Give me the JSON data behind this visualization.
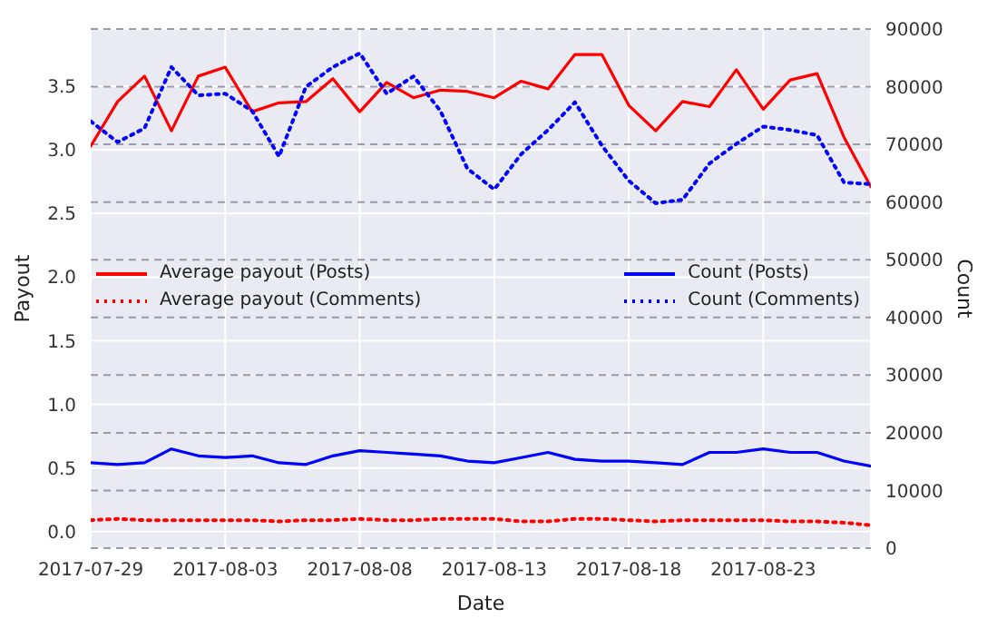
{
  "chart_data": {
    "type": "line",
    "xlabel": "Date",
    "ylabel": "Payout",
    "y2label": "Count",
    "x": [
      "2017-07-29",
      "2017-07-30",
      "2017-07-31",
      "2017-08-01",
      "2017-08-02",
      "2017-08-03",
      "2017-08-04",
      "2017-08-05",
      "2017-08-06",
      "2017-08-07",
      "2017-08-08",
      "2017-08-09",
      "2017-08-10",
      "2017-08-11",
      "2017-08-12",
      "2017-08-13",
      "2017-08-14",
      "2017-08-15",
      "2017-08-16",
      "2017-08-17",
      "2017-08-18",
      "2017-08-19",
      "2017-08-20",
      "2017-08-21",
      "2017-08-22",
      "2017-08-23",
      "2017-08-24",
      "2017-08-25",
      "2017-08-26",
      "2017-08-27"
    ],
    "series": [
      {
        "name": "Average payout (Posts)",
        "color": "#ff0000",
        "line_style": "solid",
        "values": [
          3.03,
          3.38,
          3.58,
          3.15,
          3.58,
          3.65,
          3.3,
          3.37,
          3.38,
          3.56,
          3.3,
          3.53,
          3.41,
          3.47,
          3.46,
          3.41,
          3.54,
          3.48,
          3.75,
          3.75,
          3.35,
          3.15,
          3.38,
          3.34,
          3.63,
          3.32,
          3.55,
          3.6,
          3.1,
          2.71
        ]
      },
      {
        "name": "Average payout (Comments)",
        "color": "#ff0000",
        "line_style": "dotted",
        "values": [
          0.09,
          0.1,
          0.09,
          0.09,
          0.09,
          0.09,
          0.09,
          0.08,
          0.09,
          0.09,
          0.1,
          0.09,
          0.09,
          0.1,
          0.1,
          0.1,
          0.08,
          0.08,
          0.1,
          0.1,
          0.09,
          0.08,
          0.09,
          0.09,
          0.09,
          0.09,
          0.08,
          0.08,
          0.07,
          0.05
        ]
      },
      {
        "name": "Count (Posts)",
        "color": "#0000ff",
        "line_style": "solid",
        "axis": "y2",
        "values": [
          14800,
          14500,
          14800,
          17200,
          16000,
          15700,
          16000,
          14800,
          14500,
          16000,
          16900,
          16600,
          16300,
          16000,
          15100,
          14800,
          15700,
          16600,
          15400,
          15100,
          15100,
          14800,
          14500,
          16600,
          16600,
          17200,
          16600,
          16600,
          15100,
          14200
        ]
      },
      {
        "name": "Count (Comments)",
        "color": "#0000ff",
        "line_style": "dotted",
        "axis": "y2",
        "values": [
          74000,
          70400,
          72800,
          83400,
          78500,
          78800,
          75800,
          67900,
          80000,
          83400,
          85800,
          78800,
          81800,
          75800,
          65800,
          62200,
          68300,
          72500,
          77300,
          69800,
          63700,
          59800,
          60400,
          66700,
          70100,
          73100,
          72500,
          71600,
          63400,
          63100
        ]
      }
    ],
    "xlim": [
      "2017-07-29",
      "2017-08-27"
    ],
    "xticks": [
      "2017-07-29",
      "2017-08-03",
      "2017-08-08",
      "2017-08-13",
      "2017-08-18",
      "2017-08-23"
    ],
    "ylim": [
      -0.13,
      3.95
    ],
    "yticks": [
      {
        "value": 0,
        "label": "0.0"
      },
      {
        "value": 0.5,
        "label": "0.5"
      },
      {
        "value": 1,
        "label": "1.0"
      },
      {
        "value": 1.5,
        "label": "1.5"
      },
      {
        "value": 2,
        "label": "2.0"
      },
      {
        "value": 2.5,
        "label": "2.5"
      },
      {
        "value": 3,
        "label": "3.0"
      },
      {
        "value": 3.5,
        "label": "3.5"
      }
    ],
    "y2lim": [
      0,
      90000
    ],
    "y2ticks": [
      0,
      10000,
      20000,
      30000,
      40000,
      50000,
      60000,
      70000,
      80000,
      90000
    ],
    "grid": true,
    "legend": "center left"
  }
}
